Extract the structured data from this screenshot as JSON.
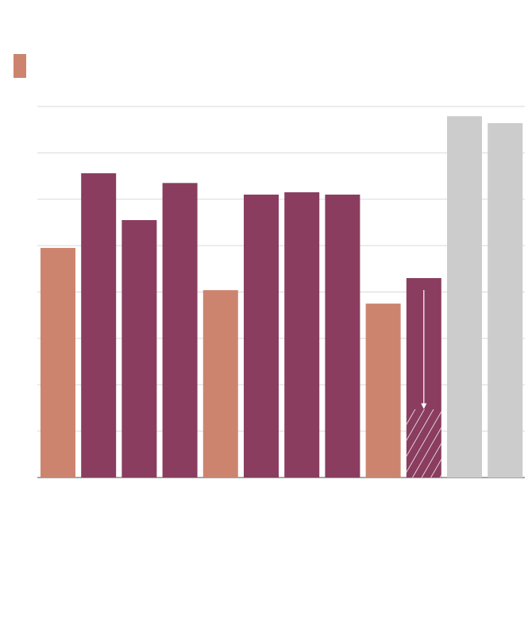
{
  "chart_data": {
    "type": "bar",
    "categories": [
      null,
      null,
      null,
      null,
      null,
      null,
      null,
      null,
      null,
      null,
      null,
      null
    ],
    "values": [
      4.95,
      6.56,
      5.55,
      6.35,
      4.04,
      6.1,
      6.15,
      6.1,
      3.75,
      4.3,
      7.79,
      7.64
    ],
    "colors": [
      "#cd846f",
      "#8a3d5f",
      "#8a3d5f",
      "#8a3d5f",
      "#cd846f",
      "#8a3d5f",
      "#8a3d5f",
      "#8a3d5f",
      "#cd846f",
      "#8a3d5f",
      "#cccccc",
      "#cccccc"
    ],
    "hatched_values": [
      null,
      null,
      null,
      null,
      null,
      null,
      null,
      null,
      null,
      1.47,
      null,
      null
    ],
    "legend_color": "#cd846f",
    "ylim": [
      0,
      8
    ],
    "yticks": [
      0,
      1,
      2,
      3,
      4,
      5,
      6,
      7,
      8
    ],
    "grid": true
  }
}
